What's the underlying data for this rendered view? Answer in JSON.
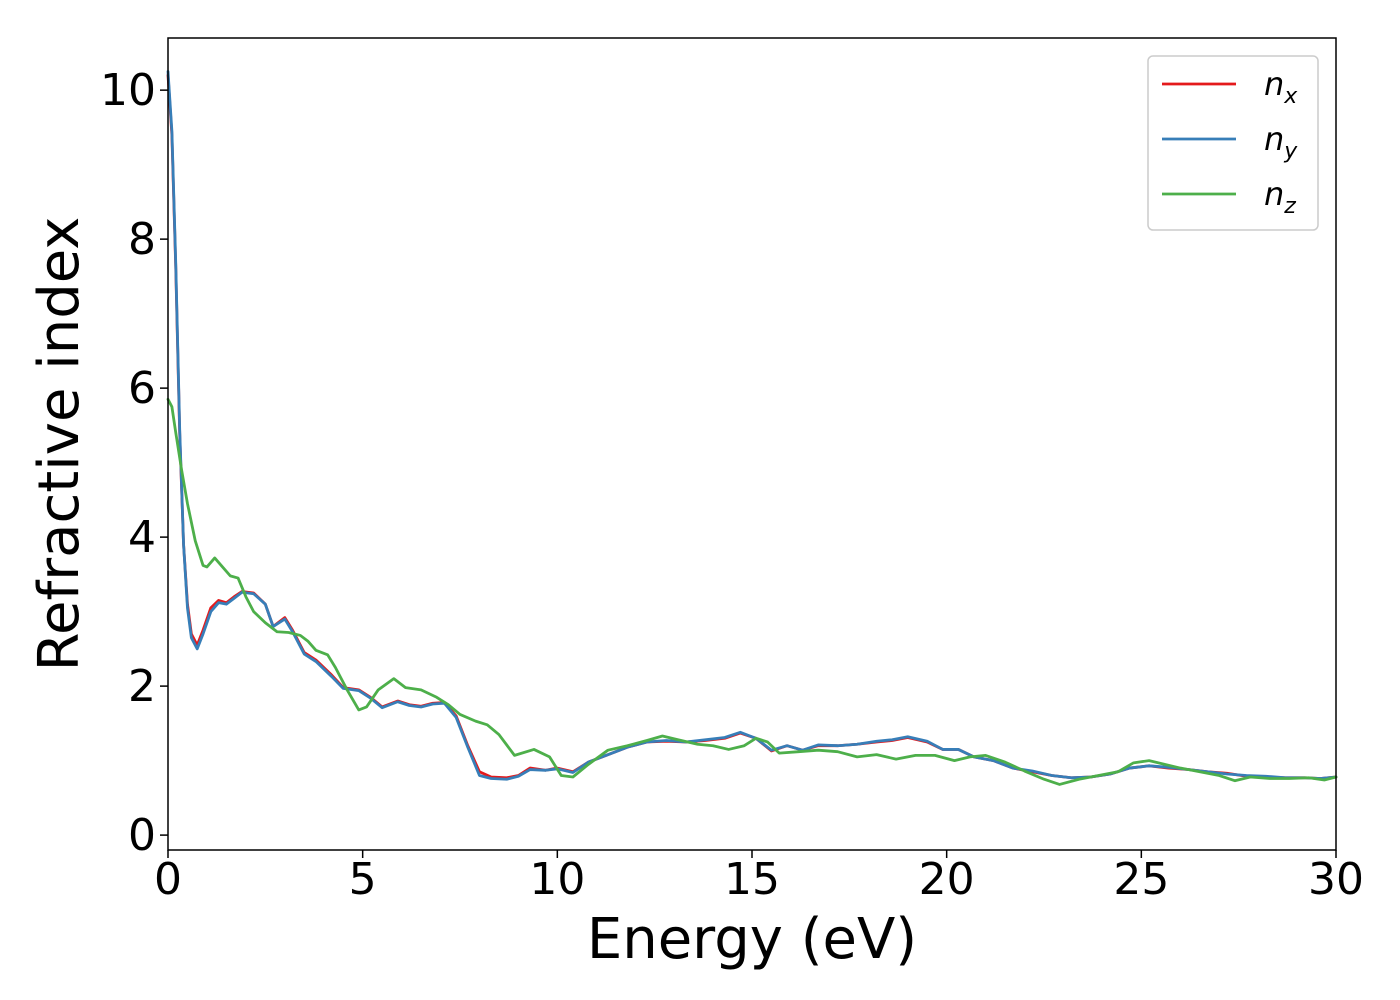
{
  "chart_data": {
    "type": "line",
    "title": "",
    "xlabel": "Energy (eV)",
    "ylabel": "Refractive index",
    "xlim": [
      0,
      30
    ],
    "ylim": [
      -0.2,
      10.7
    ],
    "xticks": [
      0,
      5,
      10,
      15,
      20,
      25,
      30
    ],
    "yticks": [
      0,
      2,
      4,
      6,
      8,
      10
    ],
    "grid": false,
    "legend_position": "top-right",
    "series": [
      {
        "name": "n",
        "subscript": "x",
        "color": "#e41a1c",
        "points": [
          [
            0,
            10.2
          ],
          [
            0.1,
            9.4
          ],
          [
            0.2,
            7.6
          ],
          [
            0.3,
            5.4
          ],
          [
            0.4,
            3.9
          ],
          [
            0.5,
            3.1
          ],
          [
            0.6,
            2.7
          ],
          [
            0.75,
            2.55
          ],
          [
            0.9,
            2.75
          ],
          [
            1.1,
            3.05
          ],
          [
            1.3,
            3.15
          ],
          [
            1.5,
            3.12
          ],
          [
            1.7,
            3.2
          ],
          [
            1.9,
            3.27
          ],
          [
            2.2,
            3.25
          ],
          [
            2.5,
            3.1
          ],
          [
            2.7,
            2.8
          ],
          [
            3.0,
            2.92
          ],
          [
            3.2,
            2.75
          ],
          [
            3.5,
            2.45
          ],
          [
            3.8,
            2.35
          ],
          [
            4.2,
            2.15
          ],
          [
            4.5,
            1.98
          ],
          [
            4.9,
            1.95
          ],
          [
            5.2,
            1.85
          ],
          [
            5.5,
            1.72
          ],
          [
            5.9,
            1.8
          ],
          [
            6.2,
            1.75
          ],
          [
            6.5,
            1.73
          ],
          [
            6.8,
            1.77
          ],
          [
            7.1,
            1.78
          ],
          [
            7.4,
            1.6
          ],
          [
            7.7,
            1.2
          ],
          [
            8.0,
            0.85
          ],
          [
            8.3,
            0.78
          ],
          [
            8.7,
            0.77
          ],
          [
            9.0,
            0.8
          ],
          [
            9.3,
            0.9
          ],
          [
            9.7,
            0.87
          ],
          [
            10.0,
            0.9
          ],
          [
            10.4,
            0.85
          ],
          [
            10.8,
            0.98
          ],
          [
            11.3,
            1.08
          ],
          [
            11.8,
            1.18
          ],
          [
            12.3,
            1.25
          ],
          [
            12.8,
            1.26
          ],
          [
            13.3,
            1.25
          ],
          [
            13.8,
            1.27
          ],
          [
            14.3,
            1.3
          ],
          [
            14.7,
            1.37
          ],
          [
            15.1,
            1.3
          ],
          [
            15.5,
            1.13
          ],
          [
            15.9,
            1.2
          ],
          [
            16.3,
            1.14
          ],
          [
            16.7,
            1.2
          ],
          [
            17.2,
            1.2
          ],
          [
            17.7,
            1.22
          ],
          [
            18.2,
            1.25
          ],
          [
            18.6,
            1.27
          ],
          [
            19.0,
            1.31
          ],
          [
            19.5,
            1.25
          ],
          [
            19.9,
            1.15
          ],
          [
            20.3,
            1.15
          ],
          [
            20.7,
            1.05
          ],
          [
            21.2,
            1.0
          ],
          [
            21.7,
            0.9
          ],
          [
            22.2,
            0.85
          ],
          [
            22.7,
            0.8
          ],
          [
            23.2,
            0.77
          ],
          [
            23.7,
            0.78
          ],
          [
            24.2,
            0.82
          ],
          [
            24.7,
            0.9
          ],
          [
            25.2,
            0.93
          ],
          [
            25.7,
            0.9
          ],
          [
            26.2,
            0.88
          ],
          [
            26.7,
            0.85
          ],
          [
            27.2,
            0.83
          ],
          [
            27.7,
            0.79
          ],
          [
            28.2,
            0.78
          ],
          [
            28.7,
            0.77
          ],
          [
            29.2,
            0.77
          ],
          [
            29.6,
            0.76
          ],
          [
            30.0,
            0.78
          ]
        ]
      },
      {
        "name": "n",
        "subscript": "y",
        "color": "#377eb8",
        "points": [
          [
            0,
            10.25
          ],
          [
            0.1,
            9.45
          ],
          [
            0.2,
            7.65
          ],
          [
            0.3,
            5.45
          ],
          [
            0.4,
            3.9
          ],
          [
            0.5,
            3.05
          ],
          [
            0.6,
            2.65
          ],
          [
            0.75,
            2.5
          ],
          [
            0.9,
            2.7
          ],
          [
            1.1,
            3.0
          ],
          [
            1.3,
            3.12
          ],
          [
            1.5,
            3.1
          ],
          [
            1.7,
            3.18
          ],
          [
            1.9,
            3.26
          ],
          [
            2.2,
            3.24
          ],
          [
            2.5,
            3.1
          ],
          [
            2.7,
            2.8
          ],
          [
            3.0,
            2.9
          ],
          [
            3.2,
            2.73
          ],
          [
            3.5,
            2.43
          ],
          [
            3.8,
            2.33
          ],
          [
            4.2,
            2.13
          ],
          [
            4.5,
            1.97
          ],
          [
            4.9,
            1.94
          ],
          [
            5.2,
            1.84
          ],
          [
            5.5,
            1.71
          ],
          [
            5.9,
            1.79
          ],
          [
            6.2,
            1.74
          ],
          [
            6.5,
            1.72
          ],
          [
            6.8,
            1.76
          ],
          [
            7.1,
            1.77
          ],
          [
            7.4,
            1.58
          ],
          [
            7.7,
            1.18
          ],
          [
            8.0,
            0.8
          ],
          [
            8.3,
            0.76
          ],
          [
            8.7,
            0.75
          ],
          [
            9.0,
            0.79
          ],
          [
            9.3,
            0.88
          ],
          [
            9.7,
            0.87
          ],
          [
            10.0,
            0.89
          ],
          [
            10.4,
            0.84
          ],
          [
            10.8,
            0.98
          ],
          [
            11.3,
            1.08
          ],
          [
            11.8,
            1.18
          ],
          [
            12.3,
            1.25
          ],
          [
            12.8,
            1.27
          ],
          [
            13.3,
            1.25
          ],
          [
            13.8,
            1.28
          ],
          [
            14.3,
            1.31
          ],
          [
            14.7,
            1.38
          ],
          [
            15.1,
            1.3
          ],
          [
            15.5,
            1.14
          ],
          [
            15.9,
            1.2
          ],
          [
            16.3,
            1.14
          ],
          [
            16.7,
            1.21
          ],
          [
            17.2,
            1.2
          ],
          [
            17.7,
            1.22
          ],
          [
            18.2,
            1.26
          ],
          [
            18.6,
            1.28
          ],
          [
            19.0,
            1.32
          ],
          [
            19.5,
            1.26
          ],
          [
            19.9,
            1.15
          ],
          [
            20.3,
            1.15
          ],
          [
            20.7,
            1.05
          ],
          [
            21.2,
            1.0
          ],
          [
            21.7,
            0.9
          ],
          [
            22.2,
            0.86
          ],
          [
            22.7,
            0.8
          ],
          [
            23.2,
            0.77
          ],
          [
            23.7,
            0.78
          ],
          [
            24.2,
            0.82
          ],
          [
            24.7,
            0.9
          ],
          [
            25.2,
            0.93
          ],
          [
            25.7,
            0.91
          ],
          [
            26.2,
            0.88
          ],
          [
            26.7,
            0.85
          ],
          [
            27.2,
            0.82
          ],
          [
            27.7,
            0.8
          ],
          [
            28.2,
            0.79
          ],
          [
            28.7,
            0.77
          ],
          [
            29.2,
            0.77
          ],
          [
            29.6,
            0.76
          ],
          [
            30.0,
            0.78
          ]
        ]
      },
      {
        "name": "n",
        "subscript": "z",
        "color": "#4daf4a",
        "points": [
          [
            0,
            5.85
          ],
          [
            0.1,
            5.75
          ],
          [
            0.2,
            5.4
          ],
          [
            0.35,
            4.9
          ],
          [
            0.5,
            4.45
          ],
          [
            0.7,
            3.95
          ],
          [
            0.9,
            3.62
          ],
          [
            1.0,
            3.6
          ],
          [
            1.2,
            3.72
          ],
          [
            1.4,
            3.6
          ],
          [
            1.6,
            3.48
          ],
          [
            1.8,
            3.45
          ],
          [
            2.0,
            3.2
          ],
          [
            2.2,
            3.0
          ],
          [
            2.5,
            2.85
          ],
          [
            2.8,
            2.73
          ],
          [
            3.1,
            2.72
          ],
          [
            3.4,
            2.68
          ],
          [
            3.6,
            2.6
          ],
          [
            3.8,
            2.48
          ],
          [
            4.1,
            2.42
          ],
          [
            4.3,
            2.25
          ],
          [
            4.6,
            1.95
          ],
          [
            4.9,
            1.68
          ],
          [
            5.1,
            1.72
          ],
          [
            5.4,
            1.95
          ],
          [
            5.8,
            2.1
          ],
          [
            6.1,
            1.98
          ],
          [
            6.5,
            1.95
          ],
          [
            6.9,
            1.85
          ],
          [
            7.2,
            1.75
          ],
          [
            7.5,
            1.62
          ],
          [
            7.9,
            1.53
          ],
          [
            8.2,
            1.48
          ],
          [
            8.5,
            1.35
          ],
          [
            8.9,
            1.07
          ],
          [
            9.4,
            1.15
          ],
          [
            9.8,
            1.05
          ],
          [
            10.1,
            0.8
          ],
          [
            10.4,
            0.78
          ],
          [
            10.8,
            0.95
          ],
          [
            11.3,
            1.14
          ],
          [
            11.8,
            1.2
          ],
          [
            12.3,
            1.27
          ],
          [
            12.7,
            1.33
          ],
          [
            13.1,
            1.28
          ],
          [
            13.6,
            1.22
          ],
          [
            14.0,
            1.2
          ],
          [
            14.4,
            1.15
          ],
          [
            14.8,
            1.2
          ],
          [
            15.1,
            1.3
          ],
          [
            15.4,
            1.25
          ],
          [
            15.7,
            1.1
          ],
          [
            16.2,
            1.12
          ],
          [
            16.7,
            1.14
          ],
          [
            17.2,
            1.12
          ],
          [
            17.7,
            1.05
          ],
          [
            18.2,
            1.08
          ],
          [
            18.7,
            1.02
          ],
          [
            19.2,
            1.07
          ],
          [
            19.7,
            1.07
          ],
          [
            20.2,
            1.0
          ],
          [
            20.6,
            1.05
          ],
          [
            21.0,
            1.07
          ],
          [
            21.5,
            0.98
          ],
          [
            22.0,
            0.86
          ],
          [
            22.5,
            0.75
          ],
          [
            22.9,
            0.68
          ],
          [
            23.4,
            0.75
          ],
          [
            23.9,
            0.8
          ],
          [
            24.4,
            0.85
          ],
          [
            24.8,
            0.97
          ],
          [
            25.2,
            1.0
          ],
          [
            25.6,
            0.95
          ],
          [
            26.0,
            0.9
          ],
          [
            26.5,
            0.85
          ],
          [
            27.0,
            0.8
          ],
          [
            27.4,
            0.73
          ],
          [
            27.8,
            0.78
          ],
          [
            28.3,
            0.76
          ],
          [
            28.8,
            0.76
          ],
          [
            29.3,
            0.77
          ],
          [
            29.7,
            0.74
          ],
          [
            30.0,
            0.78
          ]
        ]
      }
    ]
  }
}
